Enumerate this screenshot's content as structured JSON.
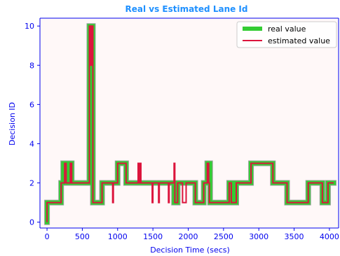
{
  "chart_data": {
    "type": "line",
    "title": "Real vs Estimated Lane Id",
    "xlabel": "Decision Time (secs)",
    "ylabel": "Decision ID",
    "xlim": [
      -100,
      4130
    ],
    "ylim": [
      -0.3,
      10.4
    ],
    "xticks": [
      0,
      500,
      1000,
      1500,
      2000,
      2500,
      3000,
      3500,
      4000
    ],
    "yticks": [
      0,
      2,
      4,
      6,
      8,
      10
    ],
    "grid": false,
    "legend_position": "top-right",
    "colors": {
      "background": "#fff8f8",
      "axis": "#0000ee",
      "title": "#1e90ff",
      "real": "#33cc33",
      "estimated": "#dc143c"
    },
    "series": [
      {
        "name": "real value",
        "style": "steps-thick",
        "points": [
          [
            0,
            0
          ],
          [
            0,
            1
          ],
          [
            200,
            1
          ],
          [
            200,
            2
          ],
          [
            230,
            2
          ],
          [
            230,
            3
          ],
          [
            290,
            3
          ],
          [
            290,
            2
          ],
          [
            330,
            2
          ],
          [
            330,
            3
          ],
          [
            350,
            3
          ],
          [
            350,
            2
          ],
          [
            600,
            2
          ],
          [
            600,
            10
          ],
          [
            650,
            10
          ],
          [
            650,
            1
          ],
          [
            780,
            1
          ],
          [
            780,
            2
          ],
          [
            1000,
            2
          ],
          [
            1000,
            3
          ],
          [
            1120,
            3
          ],
          [
            1120,
            2
          ],
          [
            1350,
            2
          ],
          [
            1350,
            2
          ],
          [
            1800,
            2
          ],
          [
            1800,
            1
          ],
          [
            1850,
            1
          ],
          [
            1850,
            2
          ],
          [
            2080,
            2
          ],
          [
            2080,
            2
          ],
          [
            2100,
            2
          ],
          [
            2100,
            1
          ],
          [
            2220,
            1
          ],
          [
            2220,
            2
          ],
          [
            2270,
            2
          ],
          [
            2270,
            3
          ],
          [
            2310,
            3
          ],
          [
            2310,
            1
          ],
          [
            2580,
            1
          ],
          [
            2580,
            2
          ],
          [
            2630,
            2
          ],
          [
            2630,
            1
          ],
          [
            2680,
            1
          ],
          [
            2680,
            2
          ],
          [
            2890,
            2
          ],
          [
            2890,
            3
          ],
          [
            3200,
            3
          ],
          [
            3200,
            2
          ],
          [
            3400,
            2
          ],
          [
            3400,
            1
          ],
          [
            3700,
            1
          ],
          [
            3700,
            2
          ],
          [
            3900,
            2
          ],
          [
            3900,
            1
          ],
          [
            3980,
            1
          ],
          [
            3980,
            2
          ],
          [
            4060,
            2
          ]
        ]
      },
      {
        "name": "estimated value",
        "style": "steps-thin",
        "points": [
          [
            0,
            0
          ],
          [
            0,
            1
          ],
          [
            200,
            1
          ],
          [
            200,
            2
          ],
          [
            250,
            2
          ],
          [
            250,
            3
          ],
          [
            270,
            3
          ],
          [
            270,
            2
          ],
          [
            330,
            2
          ],
          [
            330,
            3
          ],
          [
            350,
            3
          ],
          [
            350,
            2
          ],
          [
            600,
            2
          ],
          [
            600,
            10
          ],
          [
            620,
            10
          ],
          [
            620,
            8
          ],
          [
            640,
            8
          ],
          [
            640,
            10
          ],
          [
            650,
            10
          ],
          [
            650,
            1
          ],
          [
            780,
            1
          ],
          [
            780,
            2
          ],
          [
            930,
            2
          ],
          [
            930,
            1
          ],
          [
            940,
            1
          ],
          [
            940,
            2
          ],
          [
            1000,
            2
          ],
          [
            1000,
            3
          ],
          [
            1120,
            3
          ],
          [
            1120,
            2
          ],
          [
            1290,
            2
          ],
          [
            1290,
            3
          ],
          [
            1300,
            3
          ],
          [
            1300,
            2
          ],
          [
            1320,
            2
          ],
          [
            1320,
            3
          ],
          [
            1330,
            3
          ],
          [
            1330,
            2
          ],
          [
            1490,
            2
          ],
          [
            1490,
            1
          ],
          [
            1500,
            1
          ],
          [
            1500,
            2
          ],
          [
            1580,
            2
          ],
          [
            1580,
            1
          ],
          [
            1590,
            1
          ],
          [
            1590,
            2
          ],
          [
            1720,
            2
          ],
          [
            1720,
            1
          ],
          [
            1730,
            1
          ],
          [
            1730,
            2
          ],
          [
            1800,
            2
          ],
          [
            1800,
            3
          ],
          [
            1810,
            3
          ],
          [
            1810,
            1
          ],
          [
            1850,
            1
          ],
          [
            1850,
            2
          ],
          [
            1920,
            2
          ],
          [
            1920,
            1
          ],
          [
            1970,
            1
          ],
          [
            1970,
            2
          ],
          [
            2100,
            2
          ],
          [
            2100,
            1
          ],
          [
            2220,
            1
          ],
          [
            2220,
            2
          ],
          [
            2270,
            2
          ],
          [
            2270,
            3
          ],
          [
            2290,
            3
          ],
          [
            2290,
            2
          ],
          [
            2300,
            2
          ],
          [
            2300,
            1
          ],
          [
            2580,
            1
          ],
          [
            2580,
            2
          ],
          [
            2610,
            2
          ],
          [
            2610,
            1
          ],
          [
            2680,
            1
          ],
          [
            2680,
            2
          ],
          [
            2890,
            2
          ],
          [
            2890,
            3
          ],
          [
            3200,
            3
          ],
          [
            3200,
            2
          ],
          [
            3400,
            2
          ],
          [
            3400,
            1
          ],
          [
            3700,
            1
          ],
          [
            3700,
            2
          ],
          [
            3900,
            2
          ],
          [
            3900,
            1
          ],
          [
            3980,
            1
          ],
          [
            3980,
            2
          ],
          [
            4060,
            2
          ]
        ]
      }
    ]
  }
}
